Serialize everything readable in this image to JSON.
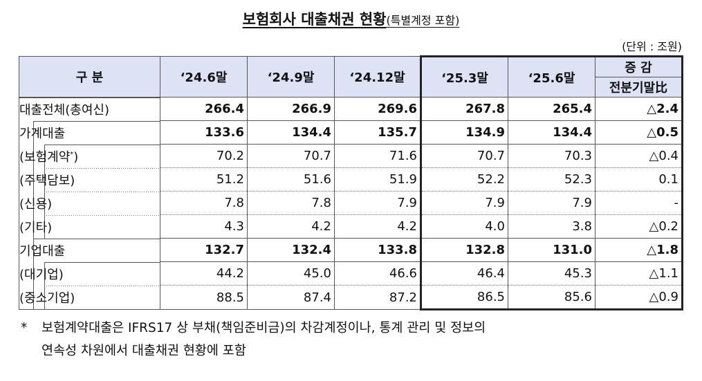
{
  "title": {
    "main": "보험회사 대출채권 현황",
    "sub": "(특별계정 포함)"
  },
  "unit": "(단위 : 조원)",
  "table": {
    "header": {
      "category": "구 분",
      "periods": [
        "‘24.6말",
        "‘24.9말",
        "‘24.12말",
        "‘25.3말",
        "‘25.6말"
      ],
      "change_top": "증 감",
      "change_sub": "전분기말比"
    },
    "rows": [
      {
        "label": "대출전체(총여신)",
        "level": 0,
        "bold": true,
        "values": [
          "266.4",
          "266.9",
          "269.6",
          "267.8",
          "265.4"
        ],
        "change": "△2.4"
      },
      {
        "label": "가계대출",
        "level": 1,
        "bold": true,
        "values": [
          "133.6",
          "134.4",
          "135.7",
          "134.9",
          "134.4"
        ],
        "change": "△0.5"
      },
      {
        "label": "(보험계약",
        "label_sup": "*",
        "label_suffix": ")",
        "level": 2,
        "bold": false,
        "values": [
          "70.2",
          "70.7",
          "71.6",
          "70.7",
          "70.3"
        ],
        "change": "△0.4"
      },
      {
        "label": "(주택담보)",
        "level": 2,
        "bold": false,
        "values": [
          "51.2",
          "51.6",
          "51.9",
          "52.2",
          "52.3"
        ],
        "change": "0.1"
      },
      {
        "label": "(신용)",
        "level": 2,
        "bold": false,
        "values": [
          "7.8",
          "7.8",
          "7.9",
          "7.9",
          "7.9"
        ],
        "change": "-"
      },
      {
        "label": "(기타)",
        "level": 2,
        "bold": false,
        "values": [
          "4.3",
          "4.2",
          "4.2",
          "4.0",
          "3.8"
        ],
        "change": "△0.2"
      },
      {
        "label": "기업대출",
        "level": 1,
        "bold": true,
        "values": [
          "132.7",
          "132.4",
          "133.8",
          "132.8",
          "131.0"
        ],
        "change": "△1.8"
      },
      {
        "label": "(대기업)",
        "level": 2,
        "bold": false,
        "values": [
          "44.2",
          "45.0",
          "46.6",
          "46.4",
          "45.3"
        ],
        "change": "△1.1"
      },
      {
        "label": "(중소기업)",
        "level": 2,
        "bold": false,
        "values": [
          "88.5",
          "87.4",
          "87.2",
          "86.5",
          "85.6"
        ],
        "change": "△0.9"
      }
    ]
  },
  "footnote": {
    "marker": "*",
    "line1": "보험계약대출은 IFRS17 상 부채(책임준비금)의 차감계정이나, 통계 관리 및 정보의",
    "line2": "연속성 차원에서 대출채권 현황에 포함"
  }
}
